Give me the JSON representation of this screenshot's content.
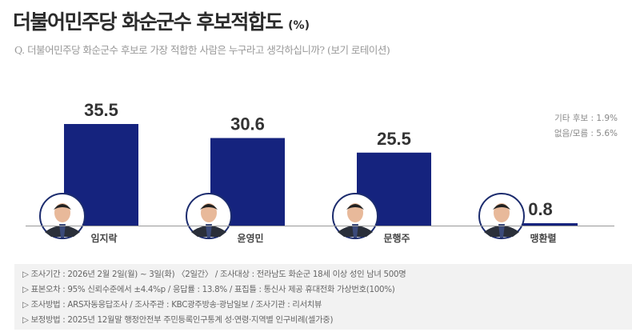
{
  "title": "더불어민주당 화순군수 후보적합도",
  "title_unit": "(%)",
  "question": "Q. 더불어민주당 화순군수 후보로 가장 적합한 사람은 누구라고 생각하십니까? (보기 로테이션)",
  "side_notes": [
    "기타 후보 : 1.9%",
    "없음/모름 : 5.6%"
  ],
  "colors": {
    "bar": "#15237e",
    "baseline": "#999999"
  },
  "chart_data": {
    "type": "bar",
    "title": "더불어민주당 화순군수 후보적합도 (%)",
    "categories": [
      "임지락",
      "윤영민",
      "문행주",
      "맹환렬"
    ],
    "values": [
      35.5,
      30.6,
      25.5,
      0.8
    ],
    "value_labels": [
      "35.5",
      "30.6",
      "25.5",
      "0.8"
    ],
    "ylim": [
      0,
      40
    ],
    "grid": false,
    "xlabel": "",
    "ylabel": ""
  },
  "footer": [
    "▷ 조사기간 : 2026년 2월 2일(월) ~ 3일(화) 〈2일간〉 / 조사대상 : 전라남도 화순군 18세 이상 성인 남녀 500명",
    "▷ 표본오차 : 95% 신뢰수준에서 ±4.4%p / 응답률 : 13.8% / 표집틀 : 통신사 제공 휴대전화 가상번호(100%)",
    "▷ 조사방법 : ARS자동응답조사 / 조사주관 : KBC광주방송·광남일보 / 조사기관 : 리서치뷰",
    "▷ 보정방법 : 2025년 12월말 행정안전부 주민등록인구통계 성·연령·지역별 인구비례(셀가중)"
  ]
}
